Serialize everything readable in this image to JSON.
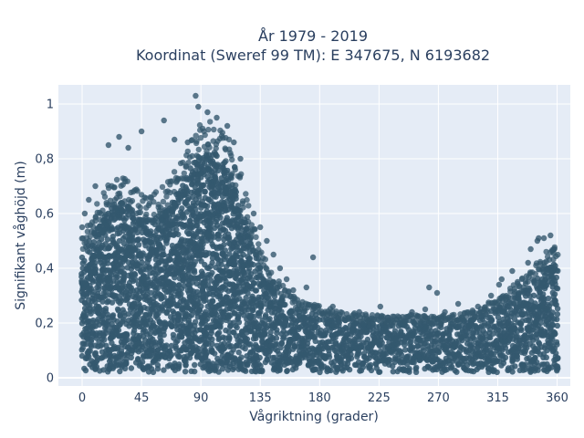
{
  "chart_data": {
    "type": "scatter",
    "title_line1": "År 1979 - 2019",
    "title_line2": "Koordinat (Sweref 99 TM): E 347675, N 6193682",
    "xlabel": "Vågriktning (grader)",
    "ylabel": "Signifikant våghöjd (m)",
    "xlim": [
      -18,
      370
    ],
    "ylim": [
      -0.03,
      1.07
    ],
    "x_ticks": [
      0,
      45,
      90,
      135,
      180,
      225,
      270,
      315,
      360
    ],
    "x_tick_labels": [
      "0",
      "45",
      "90",
      "135",
      "180",
      "225",
      "270",
      "315",
      "360"
    ],
    "y_ticks": [
      0,
      0.2,
      0.4,
      0.6,
      0.8,
      1
    ],
    "y_tick_labels": [
      "0",
      "0,2",
      "0,4",
      "0,6",
      "0,8",
      "1"
    ],
    "grid": true,
    "marker_color": "#34586e",
    "plot_bg": "#e5ecf6",
    "envelope": [
      {
        "x": 0,
        "upper": 0.45
      },
      {
        "x": 10,
        "upper": 0.55
      },
      {
        "x": 20,
        "upper": 0.62
      },
      {
        "x": 30,
        "upper": 0.66
      },
      {
        "x": 40,
        "upper": 0.6
      },
      {
        "x": 50,
        "upper": 0.58
      },
      {
        "x": 60,
        "upper": 0.6
      },
      {
        "x": 70,
        "upper": 0.65
      },
      {
        "x": 80,
        "upper": 0.75
      },
      {
        "x": 90,
        "upper": 0.82
      },
      {
        "x": 100,
        "upper": 0.82
      },
      {
        "x": 110,
        "upper": 0.78
      },
      {
        "x": 120,
        "upper": 0.65
      },
      {
        "x": 130,
        "upper": 0.48
      },
      {
        "x": 140,
        "upper": 0.36
      },
      {
        "x": 150,
        "upper": 0.3
      },
      {
        "x": 160,
        "upper": 0.26
      },
      {
        "x": 170,
        "upper": 0.24
      },
      {
        "x": 180,
        "upper": 0.23
      },
      {
        "x": 200,
        "upper": 0.21
      },
      {
        "x": 220,
        "upper": 0.2
      },
      {
        "x": 240,
        "upper": 0.2
      },
      {
        "x": 260,
        "upper": 0.2
      },
      {
        "x": 280,
        "upper": 0.2
      },
      {
        "x": 300,
        "upper": 0.22
      },
      {
        "x": 320,
        "upper": 0.27
      },
      {
        "x": 340,
        "upper": 0.34
      },
      {
        "x": 350,
        "upper": 0.4
      },
      {
        "x": 360,
        "upper": 0.42
      }
    ],
    "lower_bound": 0.02,
    "outliers": [
      {
        "x": 86,
        "y": 1.03
      },
      {
        "x": 95,
        "y": 0.97
      },
      {
        "x": 88,
        "y": 0.99
      },
      {
        "x": 102,
        "y": 0.95
      },
      {
        "x": 62,
        "y": 0.94
      },
      {
        "x": 110,
        "y": 0.92
      },
      {
        "x": 45,
        "y": 0.9
      },
      {
        "x": 28,
        "y": 0.88
      },
      {
        "x": 20,
        "y": 0.85
      },
      {
        "x": 35,
        "y": 0.84
      },
      {
        "x": 70,
        "y": 0.87
      },
      {
        "x": 80,
        "y": 0.86
      },
      {
        "x": 115,
        "y": 0.86
      },
      {
        "x": 120,
        "y": 0.8
      },
      {
        "x": 10,
        "y": 0.7
      },
      {
        "x": 5,
        "y": 0.65
      },
      {
        "x": 2,
        "y": 0.6
      },
      {
        "x": 0,
        "y": 0.55
      },
      {
        "x": 130,
        "y": 0.6
      },
      {
        "x": 135,
        "y": 0.55
      },
      {
        "x": 140,
        "y": 0.5
      },
      {
        "x": 145,
        "y": 0.45
      },
      {
        "x": 150,
        "y": 0.4
      },
      {
        "x": 155,
        "y": 0.36
      },
      {
        "x": 175,
        "y": 0.44
      },
      {
        "x": 170,
        "y": 0.33
      },
      {
        "x": 160,
        "y": 0.32
      },
      {
        "x": 190,
        "y": 0.26
      },
      {
        "x": 210,
        "y": 0.24
      },
      {
        "x": 226,
        "y": 0.26
      },
      {
        "x": 250,
        "y": 0.24
      },
      {
        "x": 260,
        "y": 0.25
      },
      {
        "x": 263,
        "y": 0.33
      },
      {
        "x": 269,
        "y": 0.31
      },
      {
        "x": 275,
        "y": 0.24
      },
      {
        "x": 285,
        "y": 0.27
      },
      {
        "x": 300,
        "y": 0.26
      },
      {
        "x": 310,
        "y": 0.3
      },
      {
        "x": 316,
        "y": 0.34
      },
      {
        "x": 326,
        "y": 0.39
      },
      {
        "x": 330,
        "y": 0.35
      },
      {
        "x": 338,
        "y": 0.42
      },
      {
        "x": 340,
        "y": 0.47
      },
      {
        "x": 345,
        "y": 0.5
      },
      {
        "x": 346,
        "y": 0.51
      },
      {
        "x": 350,
        "y": 0.51
      },
      {
        "x": 355,
        "y": 0.52
      },
      {
        "x": 358,
        "y": 0.47
      },
      {
        "x": 318,
        "y": 0.36
      },
      {
        "x": 232,
        "y": 0.22
      }
    ]
  }
}
